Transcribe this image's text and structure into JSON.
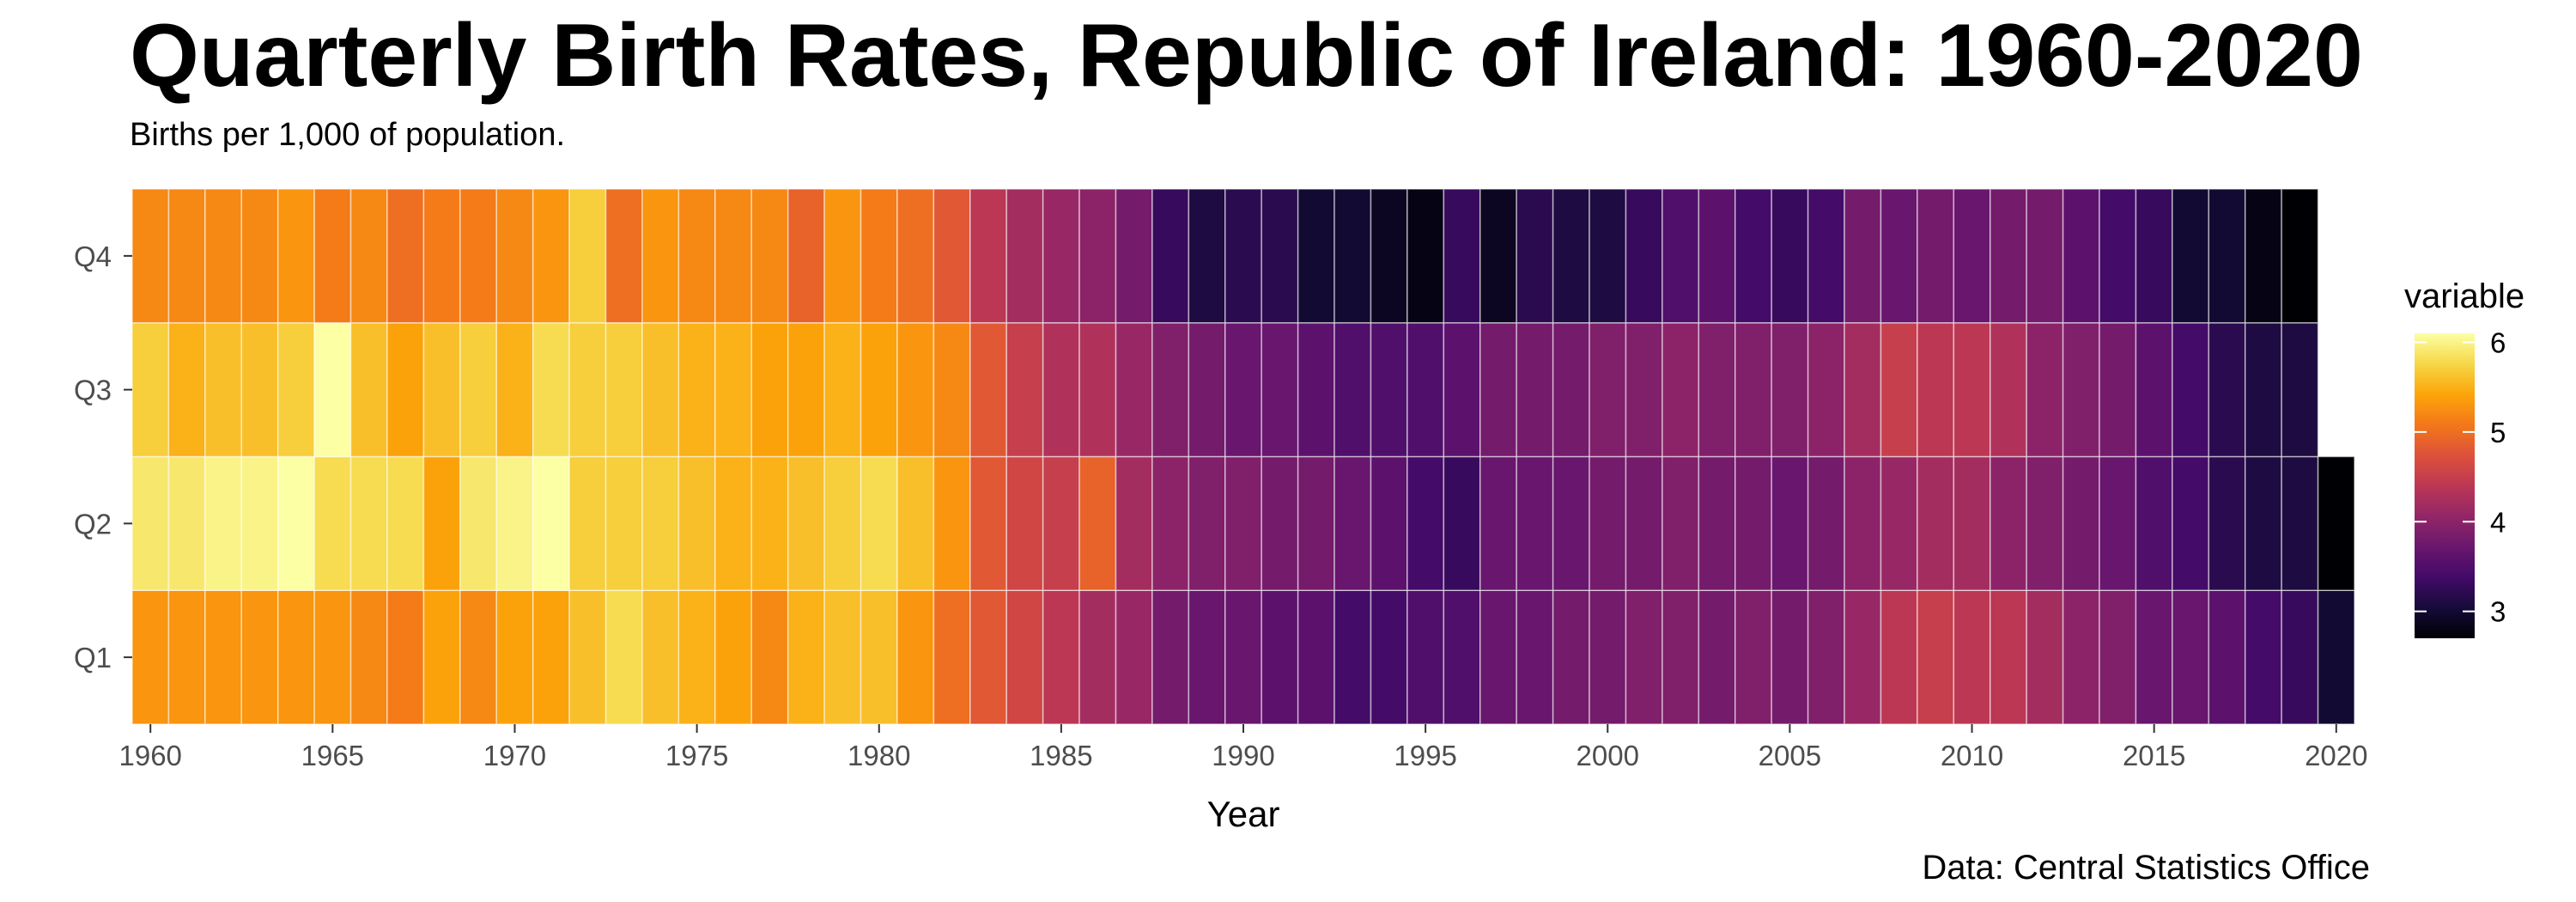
{
  "chart_data": {
    "type": "heatmap",
    "title": "Quarterly Birth Rates, Republic of Ireland: 1960-2020",
    "subtitle": "Births per 1,000 of population.",
    "caption": "Data: Central Statistics Office",
    "xlabel": "Year",
    "ylabel": "",
    "x_ticks": [
      1960,
      1965,
      1970,
      1975,
      1980,
      1985,
      1990,
      1995,
      2000,
      2005,
      2010,
      2015,
      2020
    ],
    "y_categories": [
      "Q1",
      "Q2",
      "Q3",
      "Q4"
    ],
    "years": [
      1960,
      1961,
      1962,
      1963,
      1964,
      1965,
      1966,
      1967,
      1968,
      1969,
      1970,
      1971,
      1972,
      1973,
      1974,
      1975,
      1976,
      1977,
      1978,
      1979,
      1980,
      1981,
      1982,
      1983,
      1984,
      1985,
      1986,
      1987,
      1988,
      1989,
      1990,
      1991,
      1992,
      1993,
      1994,
      1995,
      1996,
      1997,
      1998,
      1999,
      2000,
      2001,
      2002,
      2003,
      2004,
      2005,
      2006,
      2007,
      2008,
      2009,
      2010,
      2011,
      2012,
      2013,
      2014,
      2015,
      2016,
      2017,
      2018,
      2019,
      2020
    ],
    "legend": {
      "title": "variable",
      "ticks": [
        3,
        4,
        5,
        6
      ],
      "min": 2.7,
      "max": 6.1,
      "placement": "right"
    },
    "color_scale": "inferno",
    "series": [
      {
        "name": "Q1",
        "values": [
          5.3,
          5.3,
          5.3,
          5.3,
          5.3,
          5.3,
          5.2,
          5.1,
          5.4,
          5.2,
          5.4,
          5.4,
          5.6,
          5.8,
          5.6,
          5.5,
          5.4,
          5.2,
          5.5,
          5.6,
          5.6,
          5.3,
          5.0,
          4.8,
          4.6,
          4.4,
          4.2,
          4.1,
          3.8,
          3.7,
          3.7,
          3.6,
          3.6,
          3.4,
          3.4,
          3.5,
          3.5,
          3.7,
          3.7,
          3.8,
          3.8,
          3.9,
          3.9,
          3.8,
          3.9,
          3.8,
          3.9,
          4.1,
          4.4,
          4.5,
          4.4,
          4.4,
          4.2,
          4.0,
          3.9,
          3.7,
          3.7,
          3.6,
          3.4,
          3.3,
          3.0
        ]
      },
      {
        "name": "Q2",
        "values": [
          5.9,
          5.9,
          6.0,
          6.0,
          6.1,
          5.8,
          5.8,
          5.8,
          5.4,
          5.9,
          6.0,
          6.1,
          5.7,
          5.7,
          5.7,
          5.6,
          5.5,
          5.5,
          5.6,
          5.7,
          5.8,
          5.6,
          5.3,
          4.8,
          4.6,
          4.5,
          4.9,
          4.2,
          4.0,
          3.9,
          3.9,
          3.8,
          3.8,
          3.7,
          3.6,
          3.4,
          3.3,
          3.7,
          3.7,
          3.7,
          3.8,
          3.8,
          3.9,
          3.8,
          3.8,
          3.7,
          3.8,
          4.0,
          4.1,
          4.2,
          4.2,
          4.0,
          3.9,
          3.8,
          3.7,
          3.5,
          3.4,
          3.2,
          3.1,
          3.1,
          2.7
        ]
      },
      {
        "name": "Q3",
        "values": [
          5.7,
          5.5,
          5.6,
          5.6,
          5.7,
          6.1,
          5.6,
          5.4,
          5.6,
          5.7,
          5.5,
          5.8,
          5.7,
          5.7,
          5.6,
          5.5,
          5.5,
          5.4,
          5.4,
          5.5,
          5.4,
          5.3,
          5.2,
          4.8,
          4.5,
          4.3,
          4.3,
          4.1,
          3.9,
          3.8,
          3.7,
          3.7,
          3.6,
          3.5,
          3.5,
          3.5,
          3.6,
          3.8,
          3.8,
          3.8,
          3.9,
          3.9,
          4.0,
          3.9,
          3.9,
          3.9,
          4.0,
          4.2,
          4.5,
          4.4,
          4.4,
          4.3,
          4.0,
          3.9,
          3.8,
          3.6,
          3.4,
          3.2,
          3.1,
          3.1
        ]
      },
      {
        "name": "Q4",
        "values": [
          5.2,
          5.2,
          5.2,
          5.2,
          5.3,
          5.1,
          5.2,
          5.0,
          5.1,
          5.1,
          5.2,
          5.3,
          5.7,
          5.0,
          5.3,
          5.2,
          5.2,
          5.2,
          4.9,
          5.3,
          5.1,
          5.0,
          4.8,
          4.4,
          4.2,
          4.1,
          4.0,
          3.8,
          3.3,
          3.1,
          3.2,
          3.2,
          3.0,
          3.0,
          2.9,
          2.8,
          3.3,
          2.9,
          3.2,
          3.1,
          3.1,
          3.3,
          3.5,
          3.6,
          3.4,
          3.3,
          3.4,
          3.8,
          3.7,
          3.8,
          3.7,
          3.8,
          3.8,
          3.6,
          3.4,
          3.3,
          3.0,
          3.0,
          2.8,
          2.7
        ]
      }
    ]
  }
}
